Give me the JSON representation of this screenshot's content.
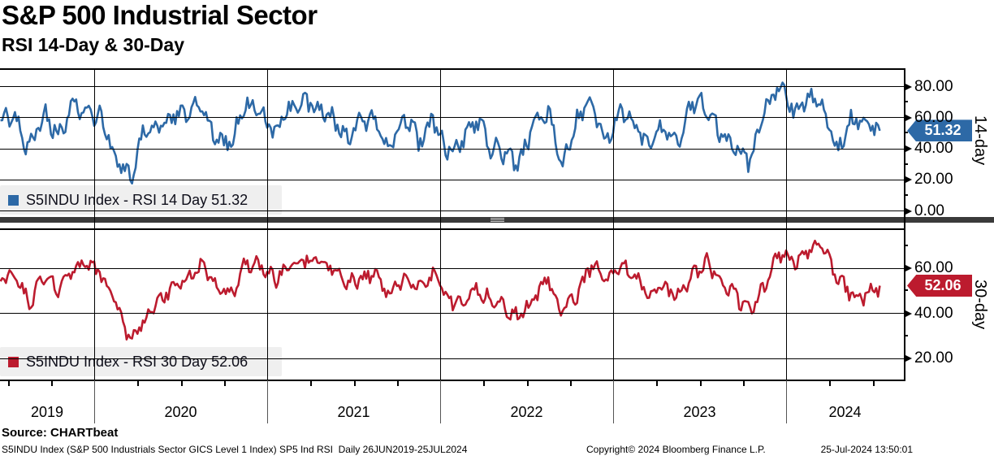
{
  "header": {
    "title": "S&P 500 Industrial Sector",
    "subtitle": "RSI 14-Day & 30-Day"
  },
  "panels": [
    {
      "id": "rsi-14",
      "axis_title": "14-day",
      "legend": "S5INDU Index - RSI 14 Day 51.32",
      "last_value": "51.32",
      "color": "#2D69A6"
    },
    {
      "id": "rsi-30",
      "axis_title": "30-day",
      "legend": "S5INDU Index - RSI 30 Day 52.06",
      "last_value": "52.06",
      "color": "#BC1B2E"
    }
  ],
  "x_axis": {
    "years": [
      "2019",
      "2020",
      "2021",
      "2022",
      "2023",
      "2024"
    ]
  },
  "footer": {
    "source": "Source: CHARTbeat",
    "description": "S5INDU Index (S&P 500 Industrials Sector GICS Level 1 Index) SP5 Ind RSI  Daily 26JUN2019-25JUL2024",
    "copyright": "Copyright© 2024 Bloomberg Finance L.P.",
    "datetime": "25-Jul-2024 13:50:01"
  },
  "chart_data": {
    "type": "line",
    "title": "S&P 500 Industrial Sector RSI 14-Day & 30-Day",
    "x_range": {
      "start": "26JUN2019",
      "end": "25JUL2024",
      "frequency": "Daily"
    },
    "x_monthly": [
      "2019-06",
      "2019-07",
      "2019-08",
      "2019-09",
      "2019-10",
      "2019-11",
      "2019-12",
      "2020-01",
      "2020-02",
      "2020-03",
      "2020-04",
      "2020-05",
      "2020-06",
      "2020-07",
      "2020-08",
      "2020-09",
      "2020-10",
      "2020-11",
      "2020-12",
      "2021-01",
      "2021-02",
      "2021-03",
      "2021-04",
      "2021-05",
      "2021-06",
      "2021-07",
      "2021-08",
      "2021-09",
      "2021-10",
      "2021-11",
      "2021-12",
      "2022-01",
      "2022-02",
      "2022-03",
      "2022-04",
      "2022-05",
      "2022-06",
      "2022-07",
      "2022-08",
      "2022-09",
      "2022-10",
      "2022-11",
      "2022-12",
      "2023-01",
      "2023-02",
      "2023-03",
      "2023-04",
      "2023-05",
      "2023-06",
      "2023-07",
      "2023-08",
      "2023-09",
      "2023-10",
      "2023-11",
      "2023-12",
      "2024-01",
      "2024-02",
      "2024-03",
      "2024-04",
      "2024-05",
      "2024-06",
      "2024-07"
    ],
    "series": [
      {
        "name": "S5INDU Index - RSI 14 Day",
        "panel": "top",
        "color": "#2D69A6",
        "current": 51.32,
        "ylim": [
          0,
          91
        ],
        "ytick_values": [
          80,
          60,
          40,
          20,
          0
        ],
        "yminor_values": [
          70,
          50,
          30,
          10
        ],
        "values": [
          58,
          62,
          38,
          63,
          48,
          68,
          64,
          60,
          33,
          20,
          52,
          55,
          62,
          63,
          69,
          44,
          43,
          70,
          61,
          50,
          64,
          69,
          66,
          58,
          46,
          56,
          59,
          38,
          63,
          44,
          61,
          38,
          43,
          60,
          40,
          37,
          30,
          56,
          63,
          29,
          58,
          71,
          44,
          66,
          54,
          40,
          56,
          44,
          70,
          67,
          48,
          41,
          32,
          64,
          81,
          63,
          73,
          68,
          38,
          59,
          56,
          51.32
        ]
      },
      {
        "name": "S5INDU Index - RSI 30 Day",
        "panel": "bottom",
        "color": "#BC1B2E",
        "current": 52.06,
        "ylim": [
          10,
          78
        ],
        "ytick_values": [
          60,
          40,
          20
        ],
        "yminor_values": [
          70,
          50,
          30
        ],
        "values": [
          54,
          57,
          45,
          55,
          50,
          60,
          61,
          57,
          45,
          27,
          37,
          45,
          52,
          55,
          62,
          52,
          48,
          62,
          61,
          55,
          60,
          64,
          64,
          61,
          52,
          55,
          57,
          48,
          55,
          51,
          57,
          46,
          44,
          51,
          45,
          42,
          38,
          46,
          55,
          40,
          48,
          61,
          54,
          61,
          57,
          48,
          52,
          47,
          57,
          62,
          55,
          48,
          40,
          52,
          67,
          62,
          67,
          69,
          57,
          48,
          47,
          52.06
        ]
      }
    ],
    "legend_position": "bottom-left inside each panel",
    "grid": true
  }
}
